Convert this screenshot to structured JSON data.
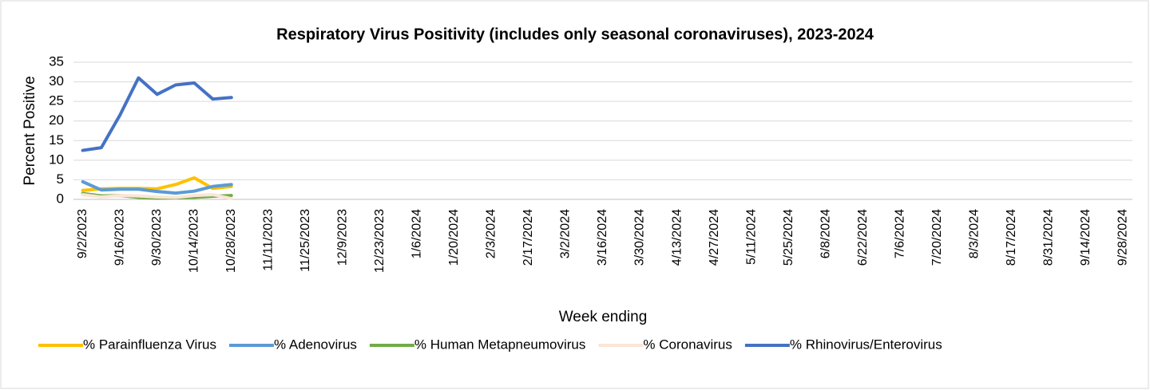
{
  "chart_data": {
    "type": "line",
    "title": "Respiratory Virus Positivity (includes only seasonal coronaviruses), 2023-2024",
    "x_label": "Week ending",
    "y_label": "Percent Positive",
    "categories": [
      "9/2/2023",
      null,
      "9/16/2023",
      null,
      "9/30/2023",
      null,
      "10/14/2023",
      null,
      "10/28/2023",
      null,
      "11/11/2023",
      null,
      "11/25/2023",
      null,
      "12/9/2023",
      null,
      "12/23/2023",
      null,
      "1/6/2024",
      null,
      "1/20/2024",
      null,
      "2/3/2024",
      null,
      "2/17/2024",
      null,
      "3/2/2024",
      null,
      "3/16/2024",
      null,
      "3/30/2024",
      null,
      "4/13/2024",
      null,
      "4/27/2024",
      null,
      "5/11/2024",
      null,
      "5/25/2024",
      null,
      "6/8/2024",
      null,
      "6/22/2024",
      null,
      "7/6/2024",
      null,
      "7/20/2024",
      null,
      "8/3/2024",
      null,
      "8/17/2024",
      null,
      "8/31/2024",
      null,
      "9/14/2024",
      null,
      "9/28/2024"
    ],
    "series": [
      {
        "name": "% Parainfluenza Virus",
        "color": "#ffc000",
        "values": [
          2.3,
          2.7,
          2.8,
          2.8,
          2.7,
          3.8,
          5.5,
          2.8,
          3.3,
          null,
          null,
          null,
          null,
          null,
          null,
          null,
          null,
          null,
          null,
          null,
          null,
          null,
          null,
          null,
          null,
          null,
          null,
          null,
          null,
          null,
          null,
          null,
          null,
          null,
          null,
          null,
          null,
          null,
          null,
          null,
          null,
          null,
          null,
          null,
          null,
          null,
          null,
          null,
          null,
          null,
          null,
          null,
          null,
          null,
          null,
          null,
          null
        ]
      },
      {
        "name": "% Adenovirus",
        "color": "#5b9bd5",
        "values": [
          4.5,
          2.4,
          2.6,
          2.6,
          2.0,
          1.6,
          2.1,
          3.3,
          3.8,
          null,
          null,
          null,
          null,
          null,
          null,
          null,
          null,
          null,
          null,
          null,
          null,
          null,
          null,
          null,
          null,
          null,
          null,
          null,
          null,
          null,
          null,
          null,
          null,
          null,
          null,
          null,
          null,
          null,
          null,
          null,
          null,
          null,
          null,
          null,
          null,
          null,
          null,
          null,
          null,
          null,
          null,
          null,
          null,
          null,
          null,
          null,
          null
        ]
      },
      {
        "name": "% Human Metapneumovirus",
        "color": "#70ad47",
        "values": [
          1.5,
          0.9,
          1.0,
          0.5,
          0.3,
          0.4,
          0.5,
          0.8,
          1.0,
          null,
          null,
          null,
          null,
          null,
          null,
          null,
          null,
          null,
          null,
          null,
          null,
          null,
          null,
          null,
          null,
          null,
          null,
          null,
          null,
          null,
          null,
          null,
          null,
          null,
          null,
          null,
          null,
          null,
          null,
          null,
          null,
          null,
          null,
          null,
          null,
          null,
          null,
          null,
          null,
          null,
          null,
          null,
          null,
          null,
          null,
          null,
          null
        ]
      },
      {
        "name": "% Coronavirus",
        "color": "#fbe5d6",
        "values": [
          1.2,
          0.6,
          1.0,
          0.9,
          0.6,
          0.5,
          1.0,
          1.2,
          0.2,
          null,
          null,
          null,
          null,
          null,
          null,
          null,
          null,
          null,
          null,
          null,
          null,
          null,
          null,
          null,
          null,
          null,
          null,
          null,
          null,
          null,
          null,
          null,
          null,
          null,
          null,
          null,
          null,
          null,
          null,
          null,
          null,
          null,
          null,
          null,
          null,
          null,
          null,
          null,
          null,
          null,
          null,
          null,
          null,
          null,
          null,
          null,
          null
        ]
      },
      {
        "name": "% Rhinovirus/Enterovirus",
        "color": "#4472c4",
        "values": [
          12.5,
          13.2,
          21.5,
          31,
          26.8,
          29.2,
          29.7,
          25.6,
          26,
          null,
          null,
          null,
          null,
          null,
          null,
          null,
          null,
          null,
          null,
          null,
          null,
          null,
          null,
          null,
          null,
          null,
          null,
          null,
          null,
          null,
          null,
          null,
          null,
          null,
          null,
          null,
          null,
          null,
          null,
          null,
          null,
          null,
          null,
          null,
          null,
          null,
          null,
          null,
          null,
          null,
          null,
          null,
          null,
          null,
          null,
          null,
          null
        ]
      }
    ],
    "ylim": [
      0,
      35
    ],
    "yticks": [
      0,
      5,
      10,
      15,
      20,
      25,
      30,
      35
    ],
    "grid": true,
    "legend": "bottom"
  }
}
